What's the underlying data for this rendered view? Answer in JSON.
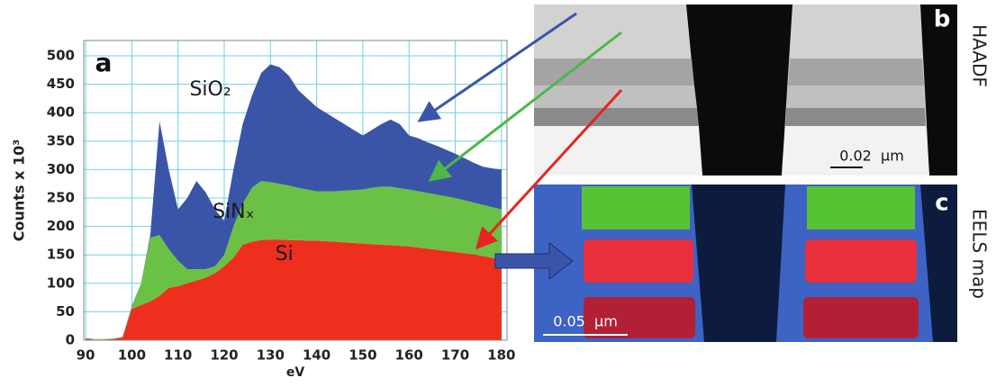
{
  "chart_data": {
    "type": "stacked-area",
    "panel_label": "a",
    "x_label": "eV",
    "y_label": "Counts x 10³",
    "x": [
      90,
      92,
      94,
      96,
      98,
      100,
      102,
      104,
      106,
      108,
      110,
      112,
      114,
      116,
      118,
      120,
      122,
      124,
      126,
      128,
      130,
      132,
      134,
      136,
      138,
      140,
      142,
      144,
      146,
      148,
      150,
      152,
      154,
      156,
      158,
      160,
      162,
      164,
      166,
      168,
      170,
      172,
      174,
      176,
      178,
      180
    ],
    "series": [
      {
        "name": "Si",
        "color": "#ee2f1e",
        "label_at": [
          133,
          150
        ],
        "values": [
          2,
          1,
          1,
          2,
          5,
          55,
          62,
          68,
          78,
          92,
          95,
          100,
          105,
          110,
          118,
          130,
          145,
          168,
          173,
          176,
          177,
          177,
          176,
          176,
          175,
          175,
          174,
          173,
          172,
          171,
          170,
          169,
          168,
          167,
          166,
          165,
          163,
          161,
          159,
          157,
          155,
          153,
          151,
          148,
          145,
          141
        ]
      },
      {
        "name": "SiNₓ",
        "color": "#6ac143",
        "label_at": [
          122,
          225
        ],
        "values": [
          1,
          1,
          1,
          1,
          1,
          3,
          38,
          112,
          107,
          68,
          45,
          25,
          20,
          15,
          12,
          20,
          55,
          72,
          95,
          104,
          101,
          98,
          96,
          92,
          90,
          87,
          88,
          89,
          91,
          93,
          95,
          99,
          102,
          103,
          101,
          100,
          99,
          98,
          97,
          96,
          95,
          93,
          91,
          90,
          89,
          89
        ]
      },
      {
        "name": "SiO₂",
        "color": "#3a55a8",
        "label_at": [
          117,
          440
        ],
        "values": [
          1,
          0,
          0,
          0,
          0,
          2,
          0,
          5,
          200,
          140,
          90,
          125,
          155,
          135,
          100,
          60,
          100,
          140,
          162,
          190,
          207,
          205,
          193,
          172,
          160,
          148,
          138,
          128,
          117,
          106,
          95,
          102,
          110,
          118,
          113,
          95,
          93,
          89,
          86,
          82,
          78,
          74,
          70,
          67,
          68,
          70
        ]
      }
    ],
    "xlim": [
      89.6,
      181.2
    ],
    "ylim": [
      0,
      527
    ],
    "xticks": [
      90,
      100,
      110,
      120,
      130,
      140,
      150,
      160,
      170,
      180
    ],
    "yticks": [
      0,
      50,
      100,
      150,
      200,
      250,
      300,
      350,
      400,
      450,
      500
    ],
    "grid": true,
    "grid_color": "#6fd0e8"
  },
  "images": {
    "b": {
      "label": "b",
      "side_label": "HAADF",
      "scale_bar": "0.02  µm"
    },
    "c": {
      "label": "c",
      "side_label": "EELS map",
      "scale_bar": "0.05  µm"
    }
  }
}
